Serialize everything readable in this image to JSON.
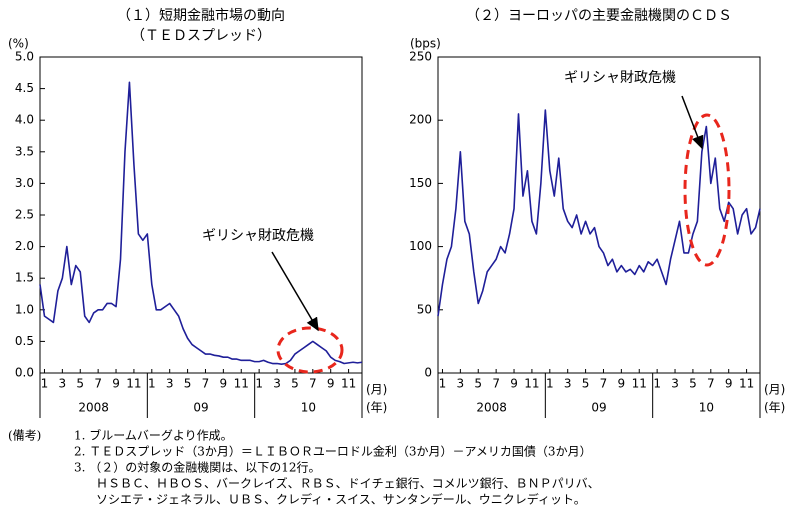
{
  "chart_data": [
    {
      "type": "line",
      "title": "（１）短期金融市場の動向",
      "subtitle": "（ＴＥＤスプレッド）",
      "y_unit": "(%)",
      "x_unit": "(月)",
      "group_unit": "(年)",
      "annotation": "ギリシャ財政危機",
      "xlim": [
        0,
        36
      ],
      "xticks": [
        {
          "value": 0.5,
          "label": "1"
        },
        {
          "value": 2.5,
          "label": "3"
        },
        {
          "value": 4.5,
          "label": "5"
        },
        {
          "value": 6.5,
          "label": "7"
        },
        {
          "value": 8.5,
          "label": "9"
        },
        {
          "value": 10.5,
          "label": "11"
        },
        {
          "value": 12.5,
          "label": "1"
        },
        {
          "value": 14.5,
          "label": "3"
        },
        {
          "value": 16.5,
          "label": "5"
        },
        {
          "value": 18.5,
          "label": "7"
        },
        {
          "value": 20.5,
          "label": "9"
        },
        {
          "value": 22.5,
          "label": "11"
        },
        {
          "value": 24.5,
          "label": "1"
        },
        {
          "value": 26.5,
          "label": "3"
        },
        {
          "value": 28.5,
          "label": "5"
        },
        {
          "value": 30.5,
          "label": "7"
        },
        {
          "value": 32.5,
          "label": "9"
        },
        {
          "value": 34.5,
          "label": "11"
        }
      ],
      "year_labels": [
        "2008",
        "09",
        "10"
      ],
      "ylim": [
        0,
        5
      ],
      "yticks": [
        {
          "value": 0,
          "label": "0.0"
        },
        0.5,
        {
          "value": 1,
          "label": "1.0"
        },
        1.5,
        {
          "value": 2,
          "label": "2.0"
        },
        2.5,
        {
          "value": 3,
          "label": "3.0"
        },
        3.5,
        {
          "value": 4,
          "label": "4.0"
        },
        4.5,
        {
          "value": 5,
          "label": "5.0"
        }
      ],
      "grid": false,
      "color": "#1f1f99",
      "x": [
        0,
        0.5,
        1,
        1.5,
        2,
        2.5,
        3,
        3.5,
        4,
        4.5,
        5,
        5.5,
        6,
        6.5,
        7,
        7.5,
        8,
        8.5,
        9,
        9.5,
        10,
        10.5,
        11,
        11.5,
        12,
        12.5,
        13,
        13.5,
        14,
        14.5,
        15,
        15.5,
        16,
        16.5,
        17,
        17.5,
        18,
        18.5,
        19,
        19.5,
        20,
        20.5,
        21,
        21.5,
        22,
        22.5,
        23,
        23.5,
        24,
        24.5,
        25,
        25.5,
        26,
        26.5,
        27,
        27.5,
        28,
        28.5,
        29,
        29.5,
        30,
        30.5,
        31,
        31.5,
        32,
        32.5,
        33,
        33.5,
        34,
        34.5,
        35,
        35.5,
        36
      ],
      "values": [
        1.4,
        0.9,
        0.85,
        0.8,
        1.3,
        1.5,
        2.0,
        1.4,
        1.7,
        1.6,
        0.9,
        0.8,
        0.95,
        1.0,
        1.0,
        1.1,
        1.1,
        1.05,
        1.8,
        3.5,
        4.6,
        3.3,
        2.2,
        2.1,
        2.2,
        1.4,
        1.0,
        1.0,
        1.05,
        1.1,
        1.0,
        0.9,
        0.7,
        0.55,
        0.45,
        0.4,
        0.35,
        0.3,
        0.3,
        0.28,
        0.27,
        0.25,
        0.25,
        0.22,
        0.22,
        0.2,
        0.2,
        0.2,
        0.18,
        0.18,
        0.2,
        0.17,
        0.15,
        0.15,
        0.14,
        0.15,
        0.2,
        0.3,
        0.35,
        0.4,
        0.45,
        0.5,
        0.45,
        0.4,
        0.35,
        0.25,
        0.2,
        0.18,
        0.15,
        0.16,
        0.17,
        0.16,
        0.17
      ]
    },
    {
      "type": "line",
      "title": "（２）ヨーロッパの主要金融機関のＣＤＳ",
      "y_unit": "(bps)",
      "x_unit": "(月)",
      "group_unit": "(年)",
      "annotation": "ギリシャ財政危機",
      "xlim": [
        0,
        36
      ],
      "xticks": [
        {
          "value": 0.5,
          "label": "1"
        },
        {
          "value": 2.5,
          "label": "3"
        },
        {
          "value": 4.5,
          "label": "5"
        },
        {
          "value": 6.5,
          "label": "7"
        },
        {
          "value": 8.5,
          "label": "9"
        },
        {
          "value": 10.5,
          "label": "11"
        },
        {
          "value": 12.5,
          "label": "1"
        },
        {
          "value": 14.5,
          "label": "3"
        },
        {
          "value": 16.5,
          "label": "5"
        },
        {
          "value": 18.5,
          "label": "7"
        },
        {
          "value": 20.5,
          "label": "9"
        },
        {
          "value": 22.5,
          "label": "11"
        },
        {
          "value": 24.5,
          "label": "1"
        },
        {
          "value": 26.5,
          "label": "3"
        },
        {
          "value": 28.5,
          "label": "5"
        },
        {
          "value": 30.5,
          "label": "7"
        },
        {
          "value": 32.5,
          "label": "9"
        },
        {
          "value": 34.5,
          "label": "11"
        }
      ],
      "year_labels": [
        "2008",
        "09",
        "10"
      ],
      "ylim": [
        0,
        250
      ],
      "yticks": [
        0,
        50,
        100,
        150,
        200,
        250
      ],
      "grid": false,
      "color": "#1f1f99",
      "x": [
        0,
        0.5,
        1,
        1.5,
        2,
        2.5,
        3,
        3.5,
        4,
        4.5,
        5,
        5.5,
        6,
        6.5,
        7,
        7.5,
        8,
        8.5,
        9,
        9.5,
        10,
        10.5,
        11,
        11.5,
        12,
        12.5,
        13,
        13.5,
        14,
        14.5,
        15,
        15.5,
        16,
        16.5,
        17,
        17.5,
        18,
        18.5,
        19,
        19.5,
        20,
        20.5,
        21,
        21.5,
        22,
        22.5,
        23,
        23.5,
        24,
        24.5,
        25,
        25.5,
        26,
        26.5,
        27,
        27.5,
        28,
        28.5,
        29,
        29.5,
        30,
        30.5,
        31,
        31.5,
        32,
        32.5,
        33,
        33.5,
        34,
        34.5,
        35,
        35.5,
        36
      ],
      "values": [
        45,
        70,
        90,
        100,
        130,
        175,
        120,
        110,
        80,
        55,
        65,
        80,
        85,
        90,
        100,
        95,
        110,
        130,
        205,
        140,
        160,
        120,
        110,
        150,
        208,
        160,
        140,
        170,
        130,
        120,
        115,
        125,
        110,
        120,
        110,
        115,
        100,
        95,
        85,
        90,
        80,
        85,
        80,
        82,
        78,
        85,
        80,
        88,
        85,
        90,
        80,
        70,
        90,
        105,
        120,
        95,
        95,
        110,
        120,
        175,
        195,
        150,
        170,
        130,
        120,
        135,
        130,
        110,
        125,
        130,
        110,
        115,
        130
      ]
    }
  ],
  "notes": {
    "label": "(備考)",
    "lines": [
      "1. ブルームバーグより作成。",
      "2. ＴＥＤスプレッド（3か月）＝ＬＩＢＯＲユーロドル金利（3か月）－アメリカ国債（3か月）",
      "3. （２）の対象の金融機関は、以下の12行。",
      "ＨＳＢＣ、ＨＢＯＳ、バークレイズ、ＲＢＳ、ドイチェ銀行、コメルツ銀行、ＢＮＰパリバ、",
      "ソシエテ・ジェネラル、ＵＢＳ、クレディ・スイス、サンタンデール、ウニクレディット。"
    ]
  }
}
